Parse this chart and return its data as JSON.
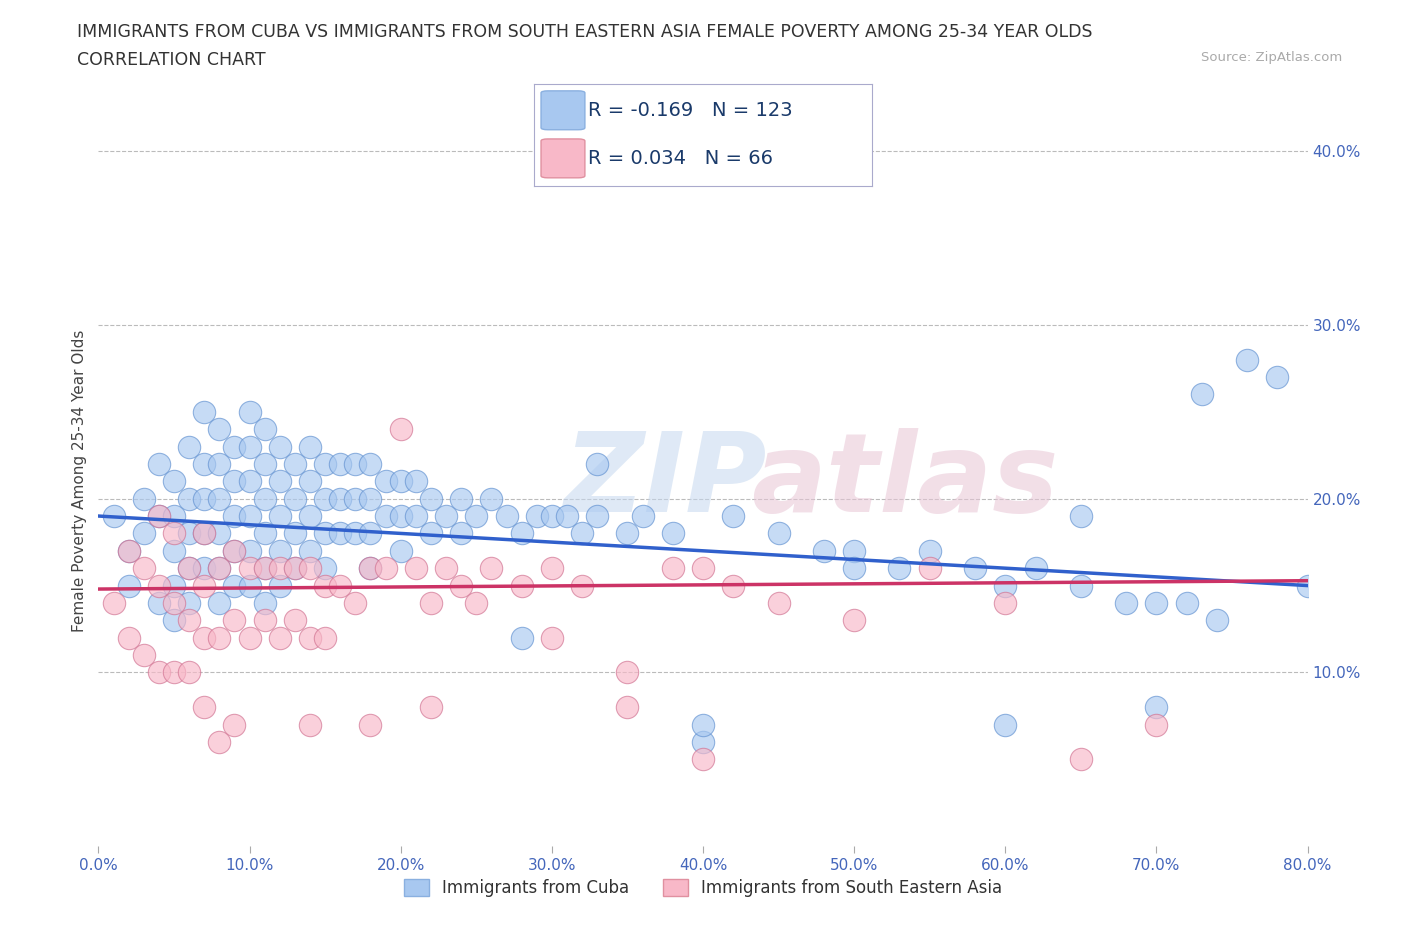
{
  "title_line1": "IMMIGRANTS FROM CUBA VS IMMIGRANTS FROM SOUTH EASTERN ASIA FEMALE POVERTY AMONG 25-34 YEAR OLDS",
  "title_line2": "CORRELATION CHART",
  "source_text": "Source: ZipAtlas.com",
  "ylabel": "Female Poverty Among 25-34 Year Olds",
  "xlim": [
    0.0,
    0.8
  ],
  "ylim": [
    0.0,
    0.42
  ],
  "xticks": [
    0.0,
    0.1,
    0.2,
    0.3,
    0.4,
    0.5,
    0.6,
    0.7,
    0.8
  ],
  "yticks_right": [
    0.1,
    0.2,
    0.3,
    0.4
  ],
  "ytick_labels_right": [
    "10.0%",
    "20.0%",
    "30.0%",
    "40.0%"
  ],
  "xtick_labels": [
    "0.0%",
    "10.0%",
    "20.0%",
    "30.0%",
    "40.0%",
    "50.0%",
    "60.0%",
    "70.0%",
    "80.0%"
  ],
  "series1_color": "#a8c8f0",
  "series2_color": "#f8b8c8",
  "series1_label": "Immigrants from Cuba",
  "series2_label": "Immigrants from South Eastern Asia",
  "series1_R": -0.169,
  "series1_N": 123,
  "series2_R": 0.034,
  "series2_N": 66,
  "line1_color": "#3060cc",
  "line2_color": "#cc3366",
  "watermark_zip": "ZIP",
  "watermark_atlas": "atlas",
  "grid_color": "#bbbbbb",
  "background_color": "#ffffff",
  "series1_x": [
    0.01,
    0.02,
    0.02,
    0.03,
    0.03,
    0.04,
    0.04,
    0.04,
    0.05,
    0.05,
    0.05,
    0.05,
    0.05,
    0.06,
    0.06,
    0.06,
    0.06,
    0.06,
    0.07,
    0.07,
    0.07,
    0.07,
    0.07,
    0.08,
    0.08,
    0.08,
    0.08,
    0.08,
    0.08,
    0.09,
    0.09,
    0.09,
    0.09,
    0.09,
    0.1,
    0.1,
    0.1,
    0.1,
    0.1,
    0.1,
    0.11,
    0.11,
    0.11,
    0.11,
    0.11,
    0.11,
    0.12,
    0.12,
    0.12,
    0.12,
    0.12,
    0.13,
    0.13,
    0.13,
    0.13,
    0.14,
    0.14,
    0.14,
    0.14,
    0.15,
    0.15,
    0.15,
    0.15,
    0.16,
    0.16,
    0.16,
    0.17,
    0.17,
    0.17,
    0.18,
    0.18,
    0.18,
    0.18,
    0.19,
    0.19,
    0.2,
    0.2,
    0.2,
    0.21,
    0.21,
    0.22,
    0.22,
    0.23,
    0.24,
    0.24,
    0.25,
    0.26,
    0.27,
    0.28,
    0.29,
    0.3,
    0.31,
    0.32,
    0.33,
    0.35,
    0.36,
    0.38,
    0.4,
    0.42,
    0.45,
    0.48,
    0.5,
    0.53,
    0.55,
    0.58,
    0.6,
    0.62,
    0.65,
    0.68,
    0.7,
    0.72,
    0.74,
    0.76,
    0.78,
    0.8,
    0.33,
    0.28,
    0.4,
    0.5,
    0.6,
    0.65,
    0.7,
    0.73
  ],
  "series1_y": [
    0.19,
    0.17,
    0.15,
    0.2,
    0.18,
    0.22,
    0.19,
    0.14,
    0.21,
    0.19,
    0.17,
    0.15,
    0.13,
    0.23,
    0.2,
    0.18,
    0.16,
    0.14,
    0.25,
    0.22,
    0.2,
    0.18,
    0.16,
    0.24,
    0.22,
    0.2,
    0.18,
    0.16,
    0.14,
    0.23,
    0.21,
    0.19,
    0.17,
    0.15,
    0.25,
    0.23,
    0.21,
    0.19,
    0.17,
    0.15,
    0.24,
    0.22,
    0.2,
    0.18,
    0.16,
    0.14,
    0.23,
    0.21,
    0.19,
    0.17,
    0.15,
    0.22,
    0.2,
    0.18,
    0.16,
    0.23,
    0.21,
    0.19,
    0.17,
    0.22,
    0.2,
    0.18,
    0.16,
    0.22,
    0.2,
    0.18,
    0.22,
    0.2,
    0.18,
    0.22,
    0.2,
    0.18,
    0.16,
    0.21,
    0.19,
    0.21,
    0.19,
    0.17,
    0.21,
    0.19,
    0.2,
    0.18,
    0.19,
    0.2,
    0.18,
    0.19,
    0.2,
    0.19,
    0.18,
    0.19,
    0.19,
    0.19,
    0.18,
    0.19,
    0.18,
    0.19,
    0.18,
    0.06,
    0.19,
    0.18,
    0.17,
    0.17,
    0.16,
    0.17,
    0.16,
    0.15,
    0.16,
    0.15,
    0.14,
    0.14,
    0.14,
    0.13,
    0.28,
    0.27,
    0.15,
    0.22,
    0.12,
    0.07,
    0.16,
    0.07,
    0.19,
    0.08,
    0.26
  ],
  "series2_x": [
    0.01,
    0.02,
    0.02,
    0.03,
    0.03,
    0.04,
    0.04,
    0.04,
    0.05,
    0.05,
    0.05,
    0.06,
    0.06,
    0.06,
    0.07,
    0.07,
    0.07,
    0.08,
    0.08,
    0.09,
    0.09,
    0.1,
    0.1,
    0.11,
    0.11,
    0.12,
    0.12,
    0.13,
    0.13,
    0.14,
    0.14,
    0.15,
    0.15,
    0.16,
    0.17,
    0.18,
    0.19,
    0.2,
    0.21,
    0.22,
    0.23,
    0.24,
    0.25,
    0.26,
    0.28,
    0.3,
    0.32,
    0.35,
    0.38,
    0.4,
    0.42,
    0.45,
    0.22,
    0.14,
    0.08,
    0.09,
    0.3,
    0.35,
    0.4,
    0.5,
    0.55,
    0.6,
    0.65,
    0.7,
    0.18,
    0.07
  ],
  "series2_y": [
    0.14,
    0.17,
    0.12,
    0.16,
    0.11,
    0.15,
    0.19,
    0.1,
    0.18,
    0.14,
    0.1,
    0.16,
    0.13,
    0.1,
    0.18,
    0.15,
    0.12,
    0.16,
    0.12,
    0.17,
    0.13,
    0.16,
    0.12,
    0.16,
    0.13,
    0.16,
    0.12,
    0.16,
    0.13,
    0.16,
    0.12,
    0.15,
    0.12,
    0.15,
    0.14,
    0.16,
    0.16,
    0.24,
    0.16,
    0.14,
    0.16,
    0.15,
    0.14,
    0.16,
    0.15,
    0.16,
    0.15,
    0.08,
    0.16,
    0.16,
    0.15,
    0.14,
    0.08,
    0.07,
    0.06,
    0.07,
    0.12,
    0.1,
    0.05,
    0.13,
    0.16,
    0.14,
    0.05,
    0.07,
    0.07,
    0.08
  ],
  "line1_intercept": 0.19,
  "line1_slope": -0.05,
  "line2_intercept": 0.148,
  "line2_slope": 0.006
}
